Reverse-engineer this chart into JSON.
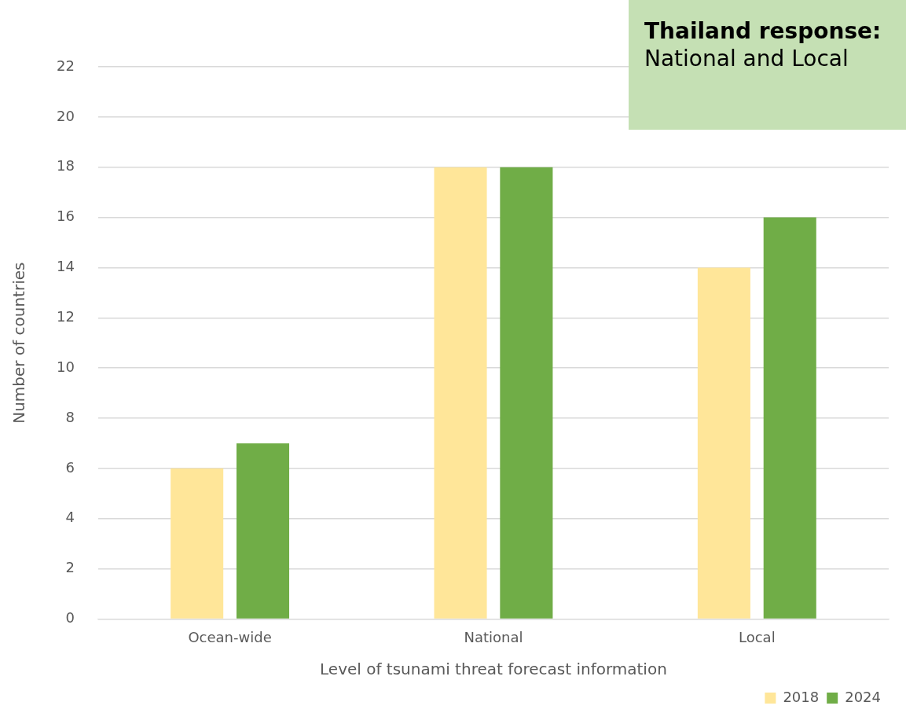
{
  "chart_data": {
    "type": "bar",
    "xlabel": "Level of tsunami threat forecast information",
    "ylabel": "Number of countries",
    "categories": [
      "Ocean-wide",
      "National",
      "Local"
    ],
    "series": [
      {
        "name": "2018",
        "color": "#ffe699",
        "values": [
          6,
          18,
          14
        ]
      },
      {
        "name": "2024",
        "color": "#70ad47",
        "values": [
          7,
          18,
          16
        ]
      }
    ],
    "ylim": [
      0,
      22
    ],
    "yticks": [
      0,
      2,
      4,
      6,
      8,
      10,
      12,
      14,
      16,
      18,
      20,
      22
    ],
    "grid": "y",
    "legend": "bottom right",
    "annotations": [
      "Thailand response:",
      "National and Local"
    ]
  }
}
